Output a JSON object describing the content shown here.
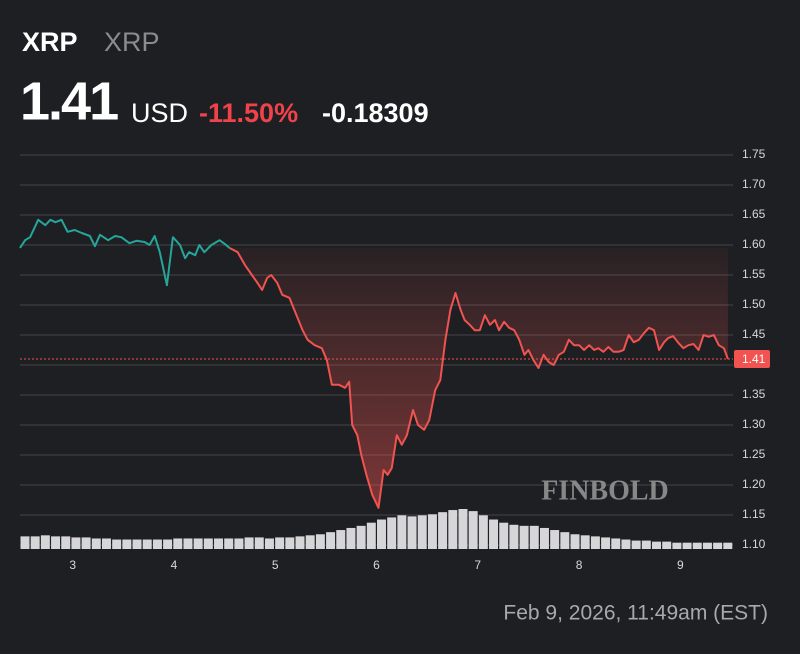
{
  "chart_data": {
    "type": "line",
    "symbol": "XRP",
    "name": "XRP",
    "price": 1.41,
    "currency": "USD",
    "change_pct": "-11.50%",
    "change": "-0.18309",
    "watermark": "FINBOLD",
    "timestamp": "Feb 9, 2026, 11:49am (EST)",
    "xlim": [
      2.48,
      9.52
    ],
    "xticks": [
      3,
      4,
      5,
      6,
      7,
      8,
      9
    ],
    "ylim": [
      1.1,
      1.75
    ],
    "yticks": [
      {
        "value": 1.1,
        "label": "1.10"
      },
      1.15,
      {
        "value": 1.2,
        "label": "1.20"
      },
      1.25,
      {
        "value": 1.3,
        "label": "1.30"
      },
      1.35,
      {
        "value": 1.4,
        "label": "1.40"
      },
      1.45,
      {
        "value": 1.5,
        "label": "1.50"
      },
      1.55,
      {
        "value": 1.6,
        "label": "1.60"
      },
      1.65,
      {
        "value": 1.7,
        "label": "1.70"
      },
      1.75
    ],
    "grid": true,
    "series": [
      {
        "color": "#26a69a",
        "x": [
          2.48,
          2.53,
          2.58,
          2.66,
          2.73,
          2.78,
          2.83,
          2.89,
          2.95,
          3.02,
          3.09,
          3.17,
          3.22,
          3.27,
          3.35,
          3.42,
          3.48,
          3.56,
          3.63,
          3.71,
          3.76,
          3.81,
          3.86,
          3.93,
          3.99,
          4.06,
          4.11,
          4.15,
          4.21,
          4.25,
          4.3,
          4.37,
          4.45,
          4.5,
          4.55
        ],
        "values": [
          1.595,
          1.608,
          1.613,
          1.642,
          1.633,
          1.642,
          1.638,
          1.642,
          1.622,
          1.625,
          1.62,
          1.615,
          1.598,
          1.617,
          1.608,
          1.615,
          1.613,
          1.603,
          1.607,
          1.605,
          1.6,
          1.615,
          1.588,
          1.533,
          1.613,
          1.6,
          1.578,
          1.588,
          1.583,
          1.6,
          1.588,
          1.6,
          1.608,
          1.602,
          1.595
        ]
      },
      {
        "color": "#f05350",
        "x": [
          4.55,
          4.63,
          4.7,
          4.77,
          4.82,
          4.87,
          4.92,
          4.96,
          5.02,
          5.07,
          5.14,
          5.21,
          5.27,
          5.32,
          5.39,
          5.46,
          5.51,
          5.56,
          5.63,
          5.69,
          5.73,
          5.76,
          5.81,
          5.85,
          5.9,
          5.96,
          6.02,
          6.07,
          6.11,
          6.15,
          6.2,
          6.25,
          6.3,
          6.36,
          6.41,
          6.47,
          6.52,
          6.58,
          6.63,
          6.68,
          6.73,
          6.78,
          6.83,
          6.87,
          6.92,
          6.97,
          7.02,
          7.07,
          7.12,
          7.17,
          7.21,
          7.26,
          7.31,
          7.36,
          7.41,
          7.46,
          7.5,
          7.55,
          7.6,
          7.65,
          7.7,
          7.75,
          7.8,
          7.85,
          7.9,
          7.95,
          8.0,
          8.05,
          8.1,
          8.15,
          8.19,
          8.24,
          8.29,
          8.34,
          8.39,
          8.44,
          8.49,
          8.54,
          8.59,
          8.64,
          8.69,
          8.74,
          8.79,
          8.84,
          8.88,
          8.93,
          8.98,
          9.03,
          9.08,
          9.13,
          9.18,
          9.23,
          9.28,
          9.33,
          9.38,
          9.43,
          9.47
        ],
        "values": [
          1.595,
          1.588,
          1.567,
          1.55,
          1.538,
          1.525,
          1.545,
          1.55,
          1.537,
          1.517,
          1.512,
          1.483,
          1.458,
          1.442,
          1.433,
          1.428,
          1.408,
          1.367,
          1.367,
          1.362,
          1.372,
          1.3,
          1.283,
          1.25,
          1.217,
          1.183,
          1.162,
          1.225,
          1.217,
          1.228,
          1.283,
          1.267,
          1.283,
          1.325,
          1.3,
          1.292,
          1.308,
          1.358,
          1.375,
          1.442,
          1.492,
          1.52,
          1.492,
          1.475,
          1.467,
          1.458,
          1.458,
          1.483,
          1.467,
          1.475,
          1.458,
          1.472,
          1.462,
          1.458,
          1.442,
          1.417,
          1.425,
          1.408,
          1.395,
          1.417,
          1.405,
          1.4,
          1.417,
          1.422,
          1.442,
          1.433,
          1.433,
          1.425,
          1.433,
          1.425,
          1.428,
          1.422,
          1.43,
          1.422,
          1.422,
          1.425,
          1.45,
          1.438,
          1.442,
          1.453,
          1.462,
          1.458,
          1.425,
          1.438,
          1.445,
          1.448,
          1.437,
          1.428,
          1.433,
          1.435,
          1.425,
          1.45,
          1.447,
          1.45,
          1.433,
          1.428,
          1.41
        ]
      }
    ],
    "volume": [
      12,
      12,
      13,
      12,
      12,
      11,
      11,
      10,
      10,
      9,
      9,
      9,
      9,
      9,
      9,
      10,
      10,
      10,
      10,
      10,
      10,
      10,
      11,
      11,
      10,
      11,
      11,
      12,
      13,
      14,
      16,
      18,
      20,
      22,
      25,
      28,
      30,
      32,
      31,
      32,
      33,
      35,
      37,
      38,
      36,
      32,
      28,
      25,
      23,
      22,
      22,
      20,
      18,
      16,
      14,
      13,
      12,
      11,
      10,
      9,
      8,
      8,
      7,
      7,
      6,
      6,
      6,
      6,
      6,
      6
    ]
  }
}
